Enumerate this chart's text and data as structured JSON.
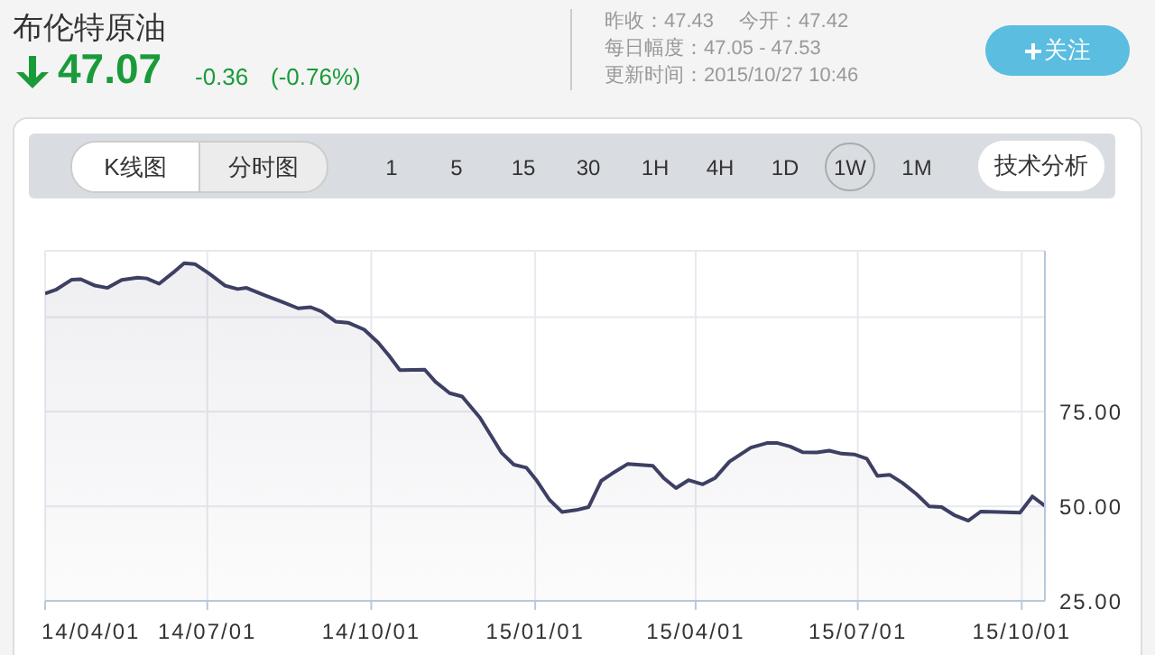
{
  "chart_data": {
    "type": "area",
    "title": "布伦特原油",
    "annotations": [
      "47.07",
      "-0.36",
      "(-0.76%)",
      "昨收：47.43",
      "今开：47.42",
      "每日幅度：47.05 - 47.53",
      "更新时间：2015/10/27 10:46",
      "关注",
      "K线图",
      "分时图",
      "15",
      "30",
      "1H",
      "4H",
      "1D",
      "1W",
      "1M",
      "1",
      "5",
      "技术分析"
    ],
    "x": [
      "2014-04-01",
      "2014-04-07",
      "2014-04-16",
      "2014-04-21",
      "2014-04-29",
      "2014-05-06",
      "2014-05-14",
      "2014-05-23",
      "2014-05-28",
      "2014-06-04",
      "2014-06-12",
      "2014-06-18",
      "2014-06-24",
      "2014-07-02",
      "2014-07-11",
      "2014-07-18",
      "2014-07-23",
      "2014-08-02",
      "2014-08-12",
      "2014-08-21",
      "2014-08-28",
      "2014-09-03",
      "2014-09-11",
      "2014-09-18",
      "2014-09-27",
      "2014-10-05",
      "2014-10-11",
      "2014-10-17",
      "2014-10-31",
      "2014-11-06",
      "2014-11-14",
      "2014-11-21",
      "2014-12-01",
      "2014-12-13",
      "2014-12-20",
      "2014-12-27",
      "2015-01-02",
      "2015-01-09",
      "2015-01-16",
      "2015-01-24",
      "2015-01-31",
      "2015-02-07",
      "2015-02-13",
      "2015-02-22",
      "2015-03-08",
      "2015-03-14",
      "2015-03-21",
      "2015-03-28",
      "2015-04-05",
      "2015-04-12",
      "2015-04-20",
      "2015-05-02",
      "2015-05-11",
      "2015-05-17",
      "2015-05-24",
      "2015-05-31",
      "2015-06-08",
      "2015-06-15",
      "2015-06-22",
      "2015-06-29",
      "2015-07-06",
      "2015-07-12",
      "2015-07-19",
      "2015-07-26",
      "2015-08-03",
      "2015-08-10",
      "2015-08-17",
      "2015-08-24",
      "2015-09-01",
      "2015-09-08",
      "2015-09-18",
      "2015-09-30",
      "2015-10-07",
      "2015-10-14"
    ],
    "series": [
      {
        "color": "#3d3f63",
        "values": [
          106.2,
          107.2,
          109.9,
          110.0,
          108.3,
          107.7,
          109.8,
          110.4,
          110.2,
          108.8,
          111.8,
          114.2,
          114.0,
          111.5,
          108.3,
          107.4,
          107.7,
          105.8,
          104.0,
          102.3,
          102.6,
          101.5,
          98.8,
          98.5,
          96.7,
          93.2,
          89.8,
          86.0,
          86.1,
          82.9,
          79.9,
          79.0,
          73.4,
          64.2,
          61.0,
          60.2,
          56.7,
          51.7,
          48.5,
          49.0,
          49.8,
          56.7,
          58.6,
          61.2,
          60.7,
          57.5,
          54.8,
          56.9,
          55.8,
          57.5,
          61.8,
          65.5,
          66.7,
          66.7,
          65.8,
          64.3,
          64.2,
          64.7,
          63.9,
          63.7,
          62.6,
          58.0,
          58.3,
          56.2,
          53.2,
          50.0,
          49.8,
          47.7,
          46.2,
          48.6,
          48.5,
          48.3,
          52.6,
          50.1
        ]
      }
    ],
    "xlim": [
      "2014-04-01",
      "2015-10-14"
    ],
    "xticks": [
      {
        "value": "2014-04-01",
        "label": "14/04/01"
      },
      {
        "value": "2014-07-01",
        "label": "14/07/01"
      },
      {
        "value": "2014-10-01",
        "label": "14/10/01"
      },
      {
        "value": "2015-01-01",
        "label": "15/01/01"
      },
      {
        "value": "2015-04-01",
        "label": "15/04/01"
      },
      {
        "value": "2015-07-01",
        "label": "15/07/01"
      },
      {
        "value": "2015-10-01",
        "label": "15/10/01"
      }
    ],
    "ylim": [
      25,
      117.5
    ],
    "yticks": [
      {
        "value": 25,
        "label": "25.00"
      },
      {
        "value": 50,
        "label": "50.00"
      },
      {
        "value": 75,
        "label": "75.00"
      },
      {
        "value": 100,
        "label": null
      }
    ],
    "grid": true,
    "legend": false
  }
}
